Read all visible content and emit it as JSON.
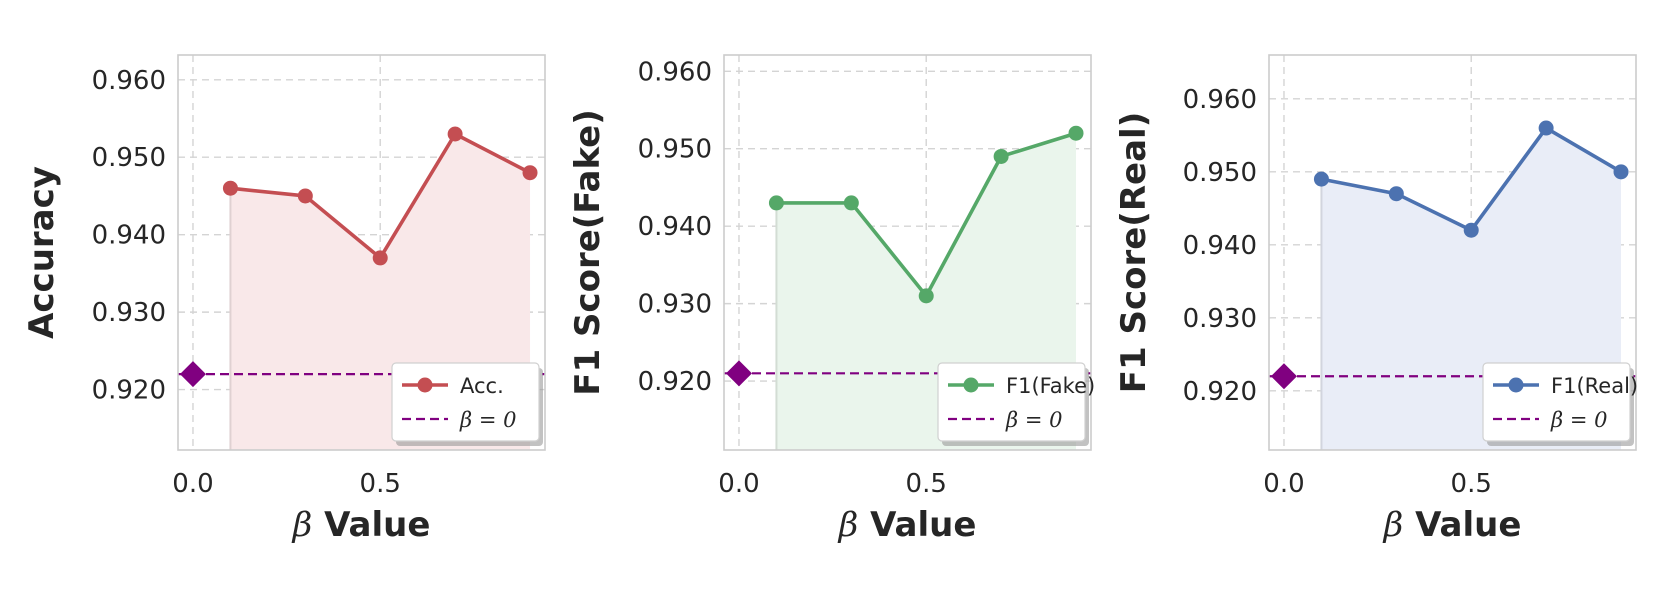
{
  "chart_data": [
    {
      "type": "line",
      "x": [
        0.1,
        0.3,
        0.5,
        0.7,
        0.9
      ],
      "series": [
        {
          "name": "Acc.",
          "values": [
            0.946,
            0.945,
            0.937,
            0.953,
            0.948
          ],
          "color": "#c44e52"
        },
        {
          "name": "β = 0",
          "style": "dashed",
          "marker_x": 0.0,
          "value": 0.922,
          "color": "#800080"
        }
      ],
      "xlabel_symbol": "β",
      "xlabel_text": " Value",
      "ylabel": "Accuracy",
      "xticks": [
        "0.0",
        "0.5"
      ],
      "yticks": [
        "0.920",
        "0.930",
        "0.940",
        "0.950",
        "0.960"
      ],
      "xlim": [
        -0.04,
        0.94
      ],
      "ylim": [
        0.9122,
        0.9632
      ],
      "grid": true,
      "legend": "lower-right",
      "fill": "#f9e8e9"
    },
    {
      "type": "line",
      "x": [
        0.1,
        0.3,
        0.5,
        0.7,
        0.9
      ],
      "series": [
        {
          "name": "F1(Fake)",
          "values": [
            0.943,
            0.943,
            0.931,
            0.949,
            0.952
          ],
          "color": "#55a868"
        },
        {
          "name": "β = 0",
          "style": "dashed",
          "marker_x": 0.0,
          "value": 0.921,
          "color": "#800080"
        }
      ],
      "xlabel_symbol": "β",
      "xlabel_text": " Value",
      "ylabel": "F1 Score(Fake)",
      "xticks": [
        "0.0",
        "0.5"
      ],
      "yticks": [
        "0.920",
        "0.930",
        "0.940",
        "0.950",
        "0.960"
      ],
      "xlim": [
        -0.04,
        0.94
      ],
      "ylim": [
        0.9111,
        0.9621
      ],
      "grid": true,
      "legend": "lower-right",
      "fill": "#eaf5ec"
    },
    {
      "type": "line",
      "x": [
        0.1,
        0.3,
        0.5,
        0.7,
        0.9
      ],
      "series": [
        {
          "name": "F1(Real)",
          "values": [
            0.949,
            0.947,
            0.942,
            0.956,
            0.95
          ],
          "color": "#4c72b0"
        },
        {
          "name": "β = 0",
          "style": "dashed",
          "marker_x": 0.0,
          "value": 0.922,
          "color": "#800080"
        }
      ],
      "xlabel_symbol": "β",
      "xlabel_text": " Value",
      "ylabel": "F1 Score(Real)",
      "xticks": [
        "0.0",
        "0.5"
      ],
      "yticks": [
        "0.920",
        "0.930",
        "0.940",
        "0.950",
        "0.960"
      ],
      "xlim": [
        -0.04,
        0.94
      ],
      "ylim": [
        0.9119,
        0.966
      ],
      "grid": true,
      "legend": "lower-right",
      "fill": "#e9edf7"
    }
  ]
}
